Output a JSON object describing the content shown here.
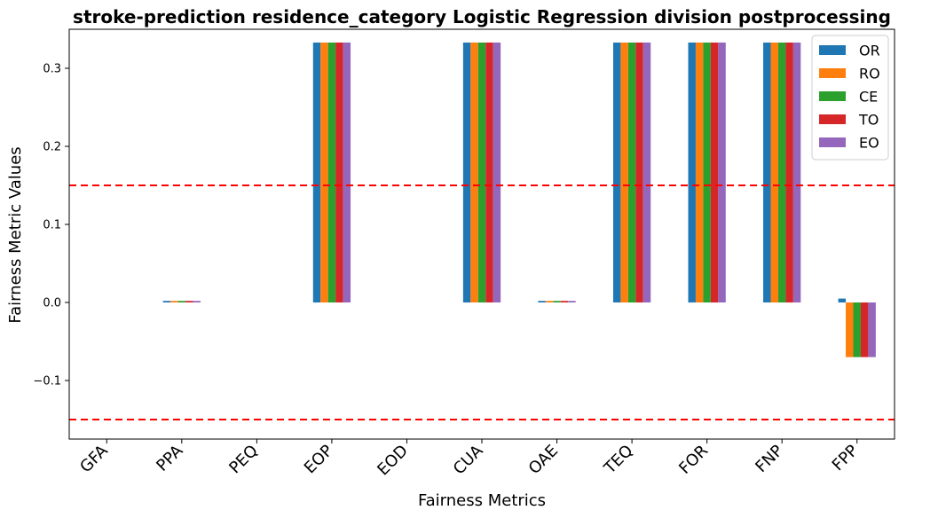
{
  "chart_data": {
    "type": "bar",
    "title": "stroke-prediction residence_category Logistic Regression division postprocessing",
    "xlabel": "Fairness Metrics",
    "ylabel": "Fairness Metric Values",
    "categories": [
      "GFA",
      "PPA",
      "PEQ",
      "EOP",
      "EOD",
      "CUA",
      "OAE",
      "TEQ",
      "FOR",
      "FNP",
      "FPP"
    ],
    "series": [
      {
        "name": "OR",
        "color": "#1f77b4",
        "values": [
          0,
          0.002,
          0,
          0.333,
          0,
          0.333,
          0.002,
          0.333,
          0.333,
          0.333,
          0.005
        ]
      },
      {
        "name": "RO",
        "color": "#ff7f0e",
        "values": [
          0,
          0.002,
          0,
          0.333,
          0,
          0.333,
          0.002,
          0.333,
          0.333,
          0.333,
          -0.07
        ]
      },
      {
        "name": "CE",
        "color": "#2ca02c",
        "values": [
          0,
          0.002,
          0,
          0.333,
          0,
          0.333,
          0.002,
          0.333,
          0.333,
          0.333,
          -0.07
        ]
      },
      {
        "name": "TO",
        "color": "#d62728",
        "values": [
          0,
          0.002,
          0,
          0.333,
          0,
          0.333,
          0.002,
          0.333,
          0.333,
          0.333,
          -0.07
        ]
      },
      {
        "name": "EO",
        "color": "#9467bd",
        "values": [
          0,
          0.002,
          0,
          0.333,
          0,
          0.333,
          0.002,
          0.333,
          0.333,
          0.333,
          -0.07
        ]
      }
    ],
    "ylim": [
      -0.175,
      0.35
    ],
    "yticks": [
      -0.1,
      0.0,
      0.1,
      0.2,
      0.3
    ],
    "ytick_labels": [
      "−0.1",
      "0.0",
      "0.1",
      "0.2",
      "0.3"
    ],
    "threshold_lines": [
      0.15,
      -0.15
    ],
    "threshold_color": "#ff0000",
    "legend_position": "top-right",
    "grid": false
  }
}
